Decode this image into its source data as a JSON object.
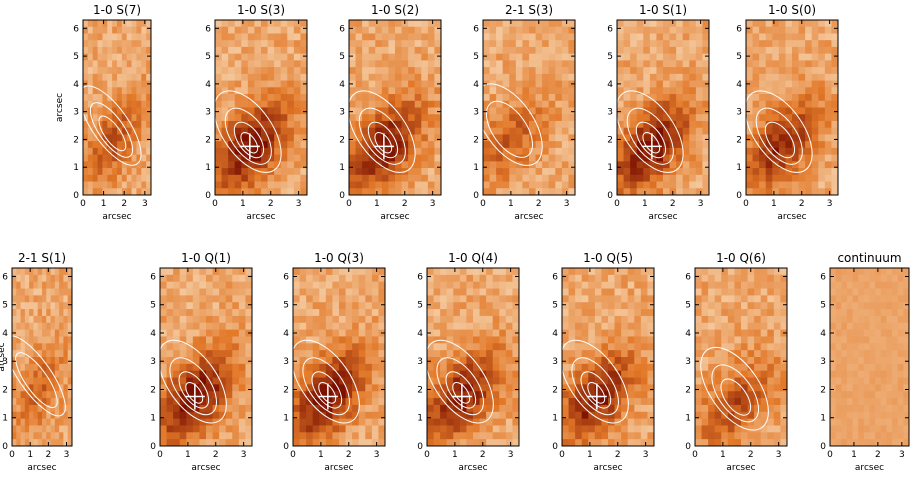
{
  "figure": {
    "axis_label": "arcsec",
    "x_ticks": [
      "0",
      "1",
      "2",
      "3"
    ],
    "y_ticks": [
      "0",
      "1",
      "2",
      "3",
      "4",
      "5",
      "6"
    ],
    "x_range": [
      0,
      3.3
    ],
    "y_range": [
      0,
      6.3
    ]
  },
  "colors": {
    "low": "#fbe6c8",
    "high": "#7a0f00",
    "contour": "#ffffff",
    "marker": "#ffffff"
  },
  "panels": [
    {
      "title": "1-0 S(7)",
      "peak": [
        1.5,
        2.0
      ],
      "marker": false,
      "strength": 0.55
    },
    {
      "title": "1-0 S(3)",
      "peak": [
        1.25,
        1.75
      ],
      "marker": true,
      "strength": 1.0
    },
    {
      "title": "1-0 S(2)",
      "peak": [
        1.25,
        1.75
      ],
      "marker": true,
      "strength": 0.95
    },
    {
      "title": "2-1 S(3)",
      "peak": [
        1.0,
        2.0
      ],
      "marker": false,
      "strength": 0.45
    },
    {
      "title": "1-0 S(1)",
      "peak": [
        1.25,
        1.75
      ],
      "marker": true,
      "strength": 1.0
    },
    {
      "title": "1-0 S(0)",
      "peak": [
        1.25,
        1.75
      ],
      "marker": false,
      "strength": 0.8
    },
    {
      "title": "2-1 S(1)",
      "peak": [
        1.5,
        2.0
      ],
      "marker": false,
      "strength": 0.4
    },
    {
      "title": "1-0 Q(1)",
      "peak": [
        1.25,
        1.75
      ],
      "marker": true,
      "strength": 1.0
    },
    {
      "title": "1-0 Q(3)",
      "peak": [
        1.25,
        1.75
      ],
      "marker": true,
      "strength": 1.0
    },
    {
      "title": "1-0 Q(4)",
      "peak": [
        1.25,
        1.75
      ],
      "marker": true,
      "strength": 0.9
    },
    {
      "title": "1-0 Q(5)",
      "peak": [
        1.25,
        1.75
      ],
      "marker": true,
      "strength": 0.9
    },
    {
      "title": "1-0 Q(6)",
      "peak": [
        1.5,
        1.5
      ],
      "marker": false,
      "strength": 0.6
    },
    {
      "title": "continuum",
      "peak": [
        1.5,
        3.0
      ],
      "marker": false,
      "strength": 0.0
    }
  ]
}
